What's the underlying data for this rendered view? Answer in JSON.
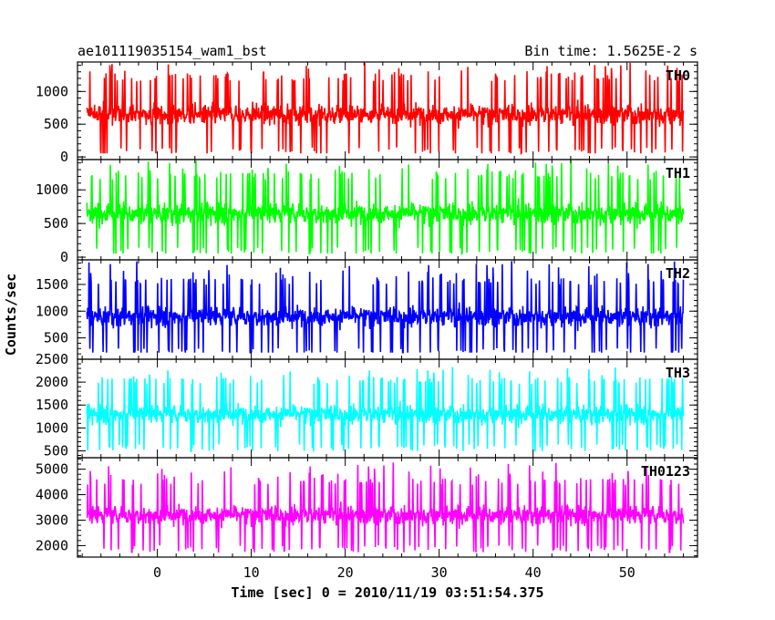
{
  "header": {
    "title": "ae101119035154_wam1_bst",
    "bin_time": "Bin time: 1.5625E-2 s"
  },
  "axes": {
    "xlabel": "Time [sec] 0 = 2010/11/19 03:51:54.375",
    "ylabel": "Counts/sec"
  },
  "chart_data": {
    "type": "line",
    "x_range": [
      -8.5,
      57.5
    ],
    "x_data_range": [
      -7.5,
      56.0
    ],
    "bin_time_s": 0.015625,
    "x_ticks": [
      0,
      10,
      20,
      30,
      40,
      50
    ],
    "x_tick_labels": [
      "0",
      "10",
      "20",
      "30",
      "40",
      "50"
    ],
    "panels": [
      {
        "name": "TH0",
        "color": "#ff0000",
        "ylim": [
          -40,
          1450
        ],
        "y_ticks": [
          0,
          500,
          1000
        ],
        "y_tick_labels": [
          "0",
          "500",
          "1000"
        ],
        "typical_min": 60,
        "typical_max": 1250,
        "spike_max": 1450,
        "mean": 650
      },
      {
        "name": "TH1",
        "color": "#00ff00",
        "ylim": [
          -40,
          1450
        ],
        "y_ticks": [
          0,
          500,
          1000
        ],
        "y_tick_labels": [
          "0",
          "500",
          "1000"
        ],
        "typical_min": 60,
        "typical_max": 1250,
        "spike_max": 1450,
        "mean": 650
      },
      {
        "name": "TH2",
        "color": "#0000ff",
        "ylim": [
          100,
          1960
        ],
        "y_ticks": [
          500,
          1000,
          1500
        ],
        "y_tick_labels": [
          "500",
          "1000",
          "1500"
        ],
        "typical_min": 250,
        "typical_max": 1650,
        "spike_max": 1960,
        "mean": 900
      },
      {
        "name": "TH3",
        "color": "#00ffff",
        "ylim": [
          350,
          2500
        ],
        "y_ticks": [
          500,
          1000,
          1500,
          2000,
          2500
        ],
        "y_tick_labels": [
          "500",
          "1000",
          "1500",
          "2000",
          "2500"
        ],
        "typical_min": 500,
        "typical_max": 2050,
        "spike_max": 2350,
        "mean": 1300
      },
      {
        "name": "TH0123",
        "color": "#ff00ff",
        "ylim": [
          1550,
          5450
        ],
        "y_ticks": [
          2000,
          3000,
          4000,
          5000
        ],
        "y_tick_labels": [
          "2000",
          "3000",
          "4000",
          "5000"
        ],
        "typical_min": 1900,
        "typical_max": 4700,
        "spike_max": 5300,
        "mean": 3200
      }
    ]
  }
}
